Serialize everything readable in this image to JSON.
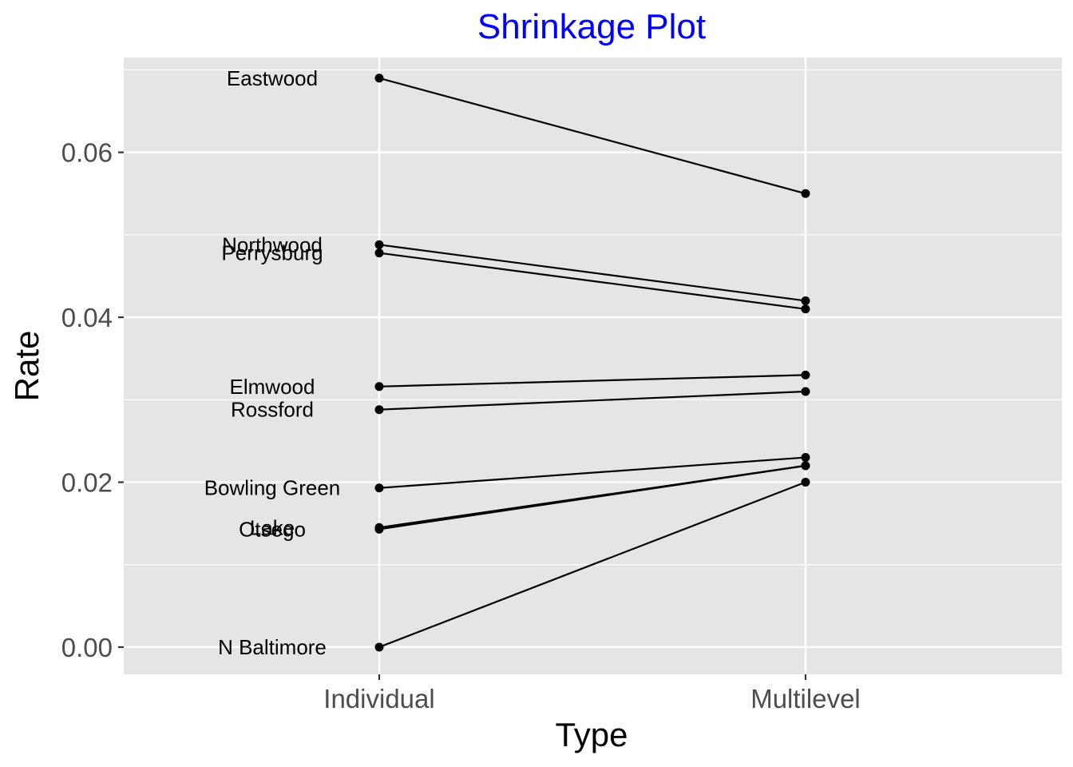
{
  "chart_data": {
    "type": "line",
    "title": "Shrinkage Plot",
    "title_color": "#0000FF",
    "xlabel": "Type",
    "ylabel": "Rate",
    "categories": [
      "Individual",
      "Multilevel"
    ],
    "ylim": [
      -0.0033,
      0.0715
    ],
    "yticks": [
      0.0,
      0.02,
      0.04,
      0.06
    ],
    "ytick_labels": [
      "0.00",
      "0.02",
      "0.04",
      "0.06"
    ],
    "panel_background": "#E5E5E5",
    "grid_color": "#FFFFFF",
    "line_color": "#000000",
    "series": [
      {
        "name": "Eastwood",
        "values": [
          0.069,
          0.055
        ]
      },
      {
        "name": "Northwood",
        "values": [
          0.0488,
          0.042
        ]
      },
      {
        "name": "Perrysburg",
        "values": [
          0.0478,
          0.041
        ]
      },
      {
        "name": "Elmwood",
        "values": [
          0.0316,
          0.033
        ]
      },
      {
        "name": "Rossford",
        "values": [
          0.0288,
          0.031
        ]
      },
      {
        "name": "Bowling Green",
        "values": [
          0.0193,
          0.023
        ]
      },
      {
        "name": "Lake",
        "values": [
          0.0145,
          0.022
        ]
      },
      {
        "name": "Otsego",
        "values": [
          0.0143,
          0.022
        ]
      },
      {
        "name": "N Baltimore",
        "values": [
          0.0,
          0.02
        ]
      }
    ],
    "labels": [
      {
        "text": "Eastwood",
        "y": 0.069
      },
      {
        "text": "Northwood",
        "y": 0.0488
      },
      {
        "text": "Perrysburg",
        "y": 0.0478
      },
      {
        "text": "Elmwood",
        "y": 0.0316
      },
      {
        "text": "Rossford",
        "y": 0.0288
      },
      {
        "text": "Bowling Green",
        "y": 0.0193
      },
      {
        "text": "Lake",
        "y": 0.0145
      },
      {
        "text": "Otsego",
        "y": 0.0143
      },
      {
        "text": "N Baltimore",
        "y": 0.0
      }
    ]
  }
}
